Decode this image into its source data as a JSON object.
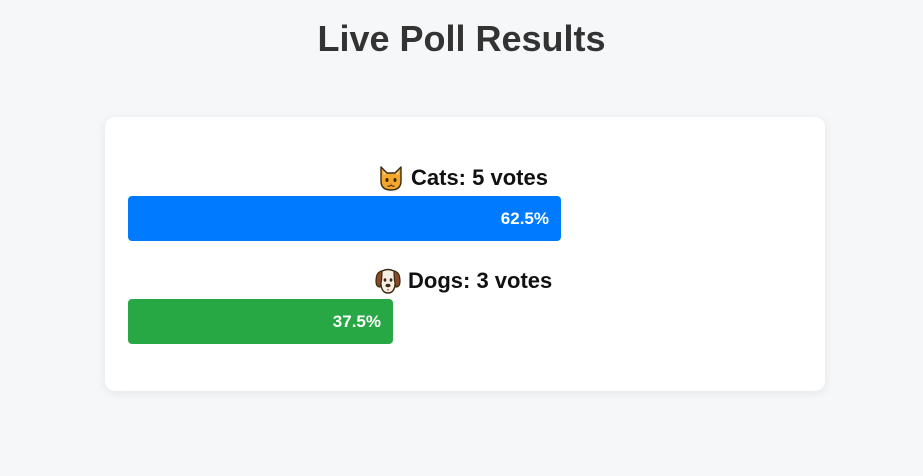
{
  "page": {
    "title": "Live Poll Results"
  },
  "poll": {
    "options": [
      {
        "icon": "cat-face-icon",
        "label": "Cats: 5 votes",
        "votes": 5,
        "percent_label": "62.5%",
        "fraction": 0.625,
        "color": "#007bff"
      },
      {
        "icon": "dog-face-icon",
        "label": "Dogs: 3 votes",
        "votes": 3,
        "percent_label": "37.5%",
        "fraction": 0.375,
        "color": "#28a745"
      }
    ]
  }
}
